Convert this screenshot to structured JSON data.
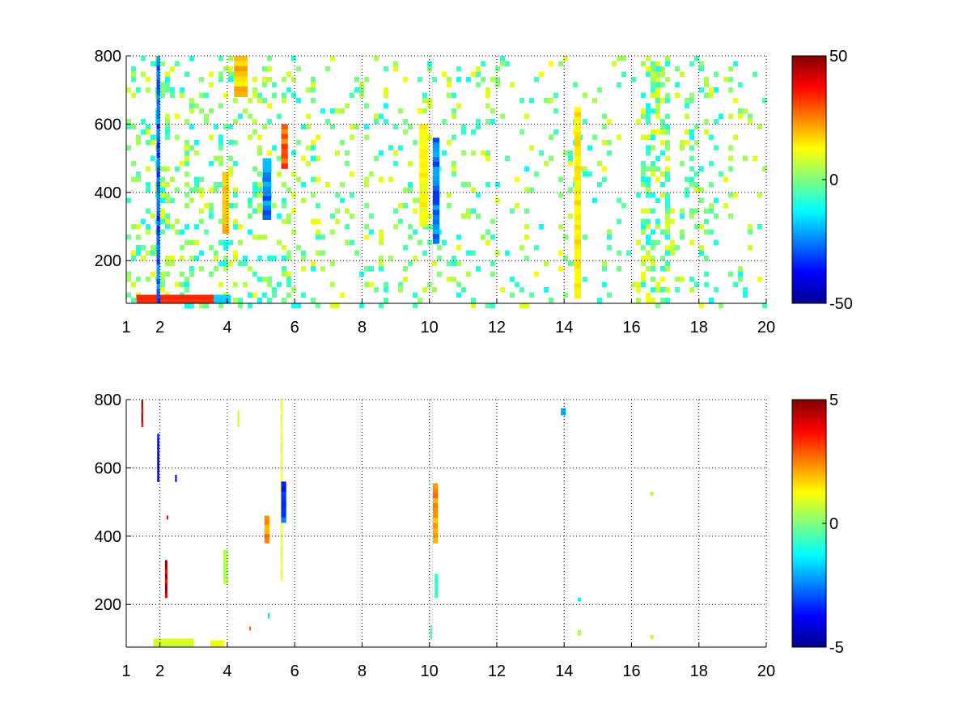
{
  "chart_data": [
    {
      "type": "heatmap",
      "title": "",
      "xlabel": "",
      "ylabel": "",
      "xlim": [
        1,
        20
      ],
      "ylim": [
        75,
        800
      ],
      "xticks": [
        1,
        2,
        4,
        6,
        8,
        10,
        12,
        14,
        16,
        18,
        20
      ],
      "xtick_labels": [
        "1",
        "2",
        "4",
        "6",
        "8",
        "10",
        "12",
        "14",
        "16",
        "18",
        "20"
      ],
      "yticks": [
        200,
        400,
        600,
        800
      ],
      "ytick_labels": [
        "200",
        "400",
        "600",
        "800"
      ],
      "grid": true,
      "colormap": "jet",
      "colorbar": {
        "min": -50,
        "max": 50,
        "ticks": [
          50,
          0,
          -50
        ],
        "tick_labels": [
          "50",
          "0",
          "-50"
        ]
      },
      "cells": {
        "density": 0.3,
        "band_density": [
          {
            "x": [
              1,
              2
            ],
            "d": 0.5
          },
          {
            "x": [
              2,
              2.2
            ],
            "d": 0.7
          },
          {
            "x": [
              2.2,
              6
            ],
            "d": 0.38
          },
          {
            "x": [
              6,
              12
            ],
            "d": 0.24
          },
          {
            "x": [
              12,
              16
            ],
            "d": 0.14
          },
          {
            "x": [
              16.2,
              17
            ],
            "d": 0.8
          },
          {
            "x": [
              18.5,
              20
            ],
            "d": 0.2
          }
        ],
        "typical_value_range": [
          -12,
          12
        ],
        "features": [
          {
            "x": [
              1.3,
              3.6
            ],
            "y": [
              75,
              100
            ],
            "value": 30,
            "note": "warm band"
          },
          {
            "x": [
              3.6,
              4.1
            ],
            "y": [
              75,
              100
            ],
            "value": -18
          },
          {
            "x": [
              4.2,
              4.6
            ],
            "y": [
              680,
              800
            ],
            "value": 18
          },
          {
            "x": [
              3.85,
              4.05
            ],
            "y": [
              280,
              460
            ],
            "value": 18
          },
          {
            "x": [
              5.05,
              5.3
            ],
            "y": [
              320,
              500
            ],
            "value": -25
          },
          {
            "x": [
              5.6,
              5.8
            ],
            "y": [
              470,
              600
            ],
            "value": 28
          },
          {
            "x": [
              9.7,
              9.95
            ],
            "y": [
              300,
              600
            ],
            "value": 12
          },
          {
            "x": [
              10.1,
              10.3
            ],
            "y": [
              250,
              560
            ],
            "value": -26
          },
          {
            "x": [
              14.3,
              14.5
            ],
            "y": [
              90,
              650
            ],
            "value": 14
          },
          {
            "x": [
              1.9,
              2.0
            ],
            "y": [
              75,
              800
            ],
            "value": -28
          }
        ]
      }
    },
    {
      "type": "heatmap",
      "title": "",
      "xlabel": "",
      "ylabel": "",
      "xlim": [
        1,
        20
      ],
      "ylim": [
        75,
        800
      ],
      "xticks": [
        1,
        2,
        4,
        6,
        8,
        10,
        12,
        14,
        16,
        18,
        20
      ],
      "xtick_labels": [
        "1",
        "2",
        "4",
        "6",
        "8",
        "10",
        "12",
        "14",
        "16",
        "18",
        "20"
      ],
      "yticks": [
        200,
        400,
        600,
        800
      ],
      "ytick_labels": [
        "200",
        "400",
        "600",
        "800"
      ],
      "grid": true,
      "colormap": "jet",
      "colorbar": {
        "min": -5,
        "max": 5,
        "ticks": [
          5,
          0,
          -5
        ],
        "tick_labels": [
          "5",
          "0",
          "-5"
        ]
      },
      "cells": {
        "density": 0,
        "features": [
          {
            "x": [
              1.45,
              1.5
            ],
            "y": [
              720,
              800
            ],
            "value": 4.5
          },
          {
            "x": [
              1.92,
              1.98
            ],
            "y": [
              560,
              700
            ],
            "value": -4.5
          },
          {
            "x": [
              2.15,
              2.22
            ],
            "y": [
              220,
              330
            ],
            "value": 4.6
          },
          {
            "x": [
              2.45,
              2.5
            ],
            "y": [
              560,
              580
            ],
            "value": -4
          },
          {
            "x": [
              2.2,
              2.25
            ],
            "y": [
              450,
              460
            ],
            "value": 4
          },
          {
            "x": [
              1.8,
              3.0
            ],
            "y": [
              75,
              100
            ],
            "value": 0.8
          },
          {
            "x": [
              3.5,
              3.9
            ],
            "y": [
              75,
              95
            ],
            "value": 0.9
          },
          {
            "x": [
              3.88,
              4.02
            ],
            "y": [
              260,
              360
            ],
            "value": 0.5
          },
          {
            "x": [
              4.3,
              4.35
            ],
            "y": [
              720,
              770
            ],
            "value": 0.8
          },
          {
            "x": [
              4.65,
              4.7
            ],
            "y": [
              125,
              135
            ],
            "value": 3.5
          },
          {
            "x": [
              5.1,
              5.25
            ],
            "y": [
              380,
              460
            ],
            "value": 2.5
          },
          {
            "x": [
              5.2,
              5.25
            ],
            "y": [
              160,
              175
            ],
            "value": -2
          },
          {
            "x": [
              5.58,
              5.62
            ],
            "y": [
              270,
              800
            ],
            "value": 1
          },
          {
            "x": [
              5.6,
              5.75
            ],
            "y": [
              440,
              560
            ],
            "value": -3
          },
          {
            "x": [
              10.1,
              10.25
            ],
            "y": [
              380,
              555
            ],
            "value": 2.2
          },
          {
            "x": [
              10.15,
              10.25
            ],
            "y": [
              220,
              290
            ],
            "value": -0.8
          },
          {
            "x": [
              10.02,
              10.08
            ],
            "y": [
              100,
              140
            ],
            "value": -0.5
          },
          {
            "x": [
              13.9,
              14.05
            ],
            "y": [
              755,
              775
            ],
            "value": -2.5
          },
          {
            "x": [
              14.4,
              14.5
            ],
            "y": [
              210,
              220
            ],
            "value": -1.8
          },
          {
            "x": [
              14.4,
              14.5
            ],
            "y": [
              110,
              125
            ],
            "value": 0.5
          },
          {
            "x": [
              16.55,
              16.65
            ],
            "y": [
              520,
              530
            ],
            "value": 0.5
          },
          {
            "x": [
              16.55,
              16.65
            ],
            "y": [
              100,
              110
            ],
            "value": 0.6
          }
        ]
      }
    }
  ]
}
